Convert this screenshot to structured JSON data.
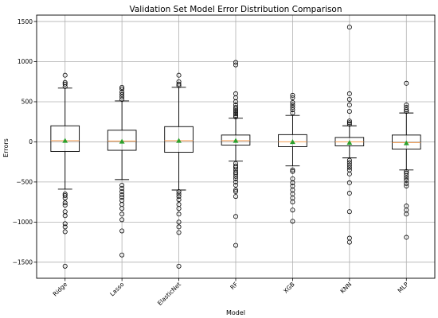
{
  "chart_data": {
    "type": "box",
    "title": "Validation Set Model Error Distribution Comparison",
    "xlabel": "Model",
    "ylabel": "Errors",
    "ylim": [
      -1700,
      1580
    ],
    "yticks": [
      -1500,
      -1000,
      -500,
      0,
      500,
      1000,
      1500
    ],
    "ytick_labels": [
      "−1500",
      "−1000",
      "−500",
      "0",
      "500",
      "1000",
      "1500"
    ],
    "grid": true,
    "categories": [
      "Ridge",
      "Lasso",
      "ElasticNet",
      "RF",
      "XGB",
      "KNN",
      "MLP"
    ],
    "series": [
      {
        "q1": -120,
        "median": 15,
        "q3": 200,
        "whisker_low": -590,
        "whisker_high": 670,
        "mean": 15,
        "fliers": [
          690,
          720,
          740,
          830,
          -650,
          -670,
          -700,
          -760,
          -790,
          -870,
          -920,
          -1020,
          -1060,
          -1120,
          -1550
        ]
      },
      {
        "q1": -105,
        "median": 10,
        "q3": 145,
        "whisker_low": -470,
        "whisker_high": 510,
        "mean": 5,
        "fliers": [
          530,
          560,
          590,
          620,
          660,
          680,
          -540,
          -580,
          -620,
          -660,
          -690,
          -730,
          -780,
          -830,
          -900,
          -970,
          -1110,
          -1410
        ]
      },
      {
        "q1": -130,
        "median": 15,
        "q3": 190,
        "whisker_low": -600,
        "whisker_high": 680,
        "mean": 15,
        "fliers": [
          700,
          720,
          750,
          830,
          -620,
          -650,
          -680,
          -720,
          -780,
          -830,
          -900,
          -1000,
          -1060,
          -1130,
          -1550
        ]
      },
      {
        "q1": -40,
        "median": 15,
        "q3": 85,
        "whisker_low": -240,
        "whisker_high": 295,
        "mean": 15,
        "fliers": [
          310,
          330,
          350,
          370,
          390,
          410,
          430,
          460,
          500,
          550,
          600,
          960,
          990,
          -270,
          -300,
          -320,
          -350,
          -380,
          -400,
          -430,
          -460,
          -500,
          -540,
          -600,
          -620,
          -680,
          -930,
          -1290
        ]
      },
      {
        "q1": -60,
        "median": 0,
        "q3": 90,
        "whisker_low": -300,
        "whisker_high": 330,
        "mean": 0,
        "fliers": [
          360,
          400,
          430,
          460,
          490,
          550,
          580,
          -350,
          -370,
          -460,
          -510,
          -550,
          -600,
          -650,
          -700,
          -750,
          -850,
          -990
        ]
      },
      {
        "q1": -50,
        "median": 0,
        "q3": 55,
        "whisker_low": -200,
        "whisker_high": 200,
        "mean": -10,
        "fliers": [
          220,
          240,
          260,
          380,
          460,
          530,
          600,
          1430,
          -230,
          -260,
          -290,
          -320,
          -350,
          -400,
          -510,
          -640,
          -870,
          -1200,
          -1250
        ]
      },
      {
        "q1": -90,
        "median": -10,
        "q3": 85,
        "whisker_low": -350,
        "whisker_high": 360,
        "mean": -15,
        "fliers": [
          380,
          400,
          430,
          460,
          730,
          -370,
          -390,
          -420,
          -450,
          -480,
          -520,
          -550,
          -800,
          -850,
          -900,
          -1190
        ]
      }
    ]
  }
}
